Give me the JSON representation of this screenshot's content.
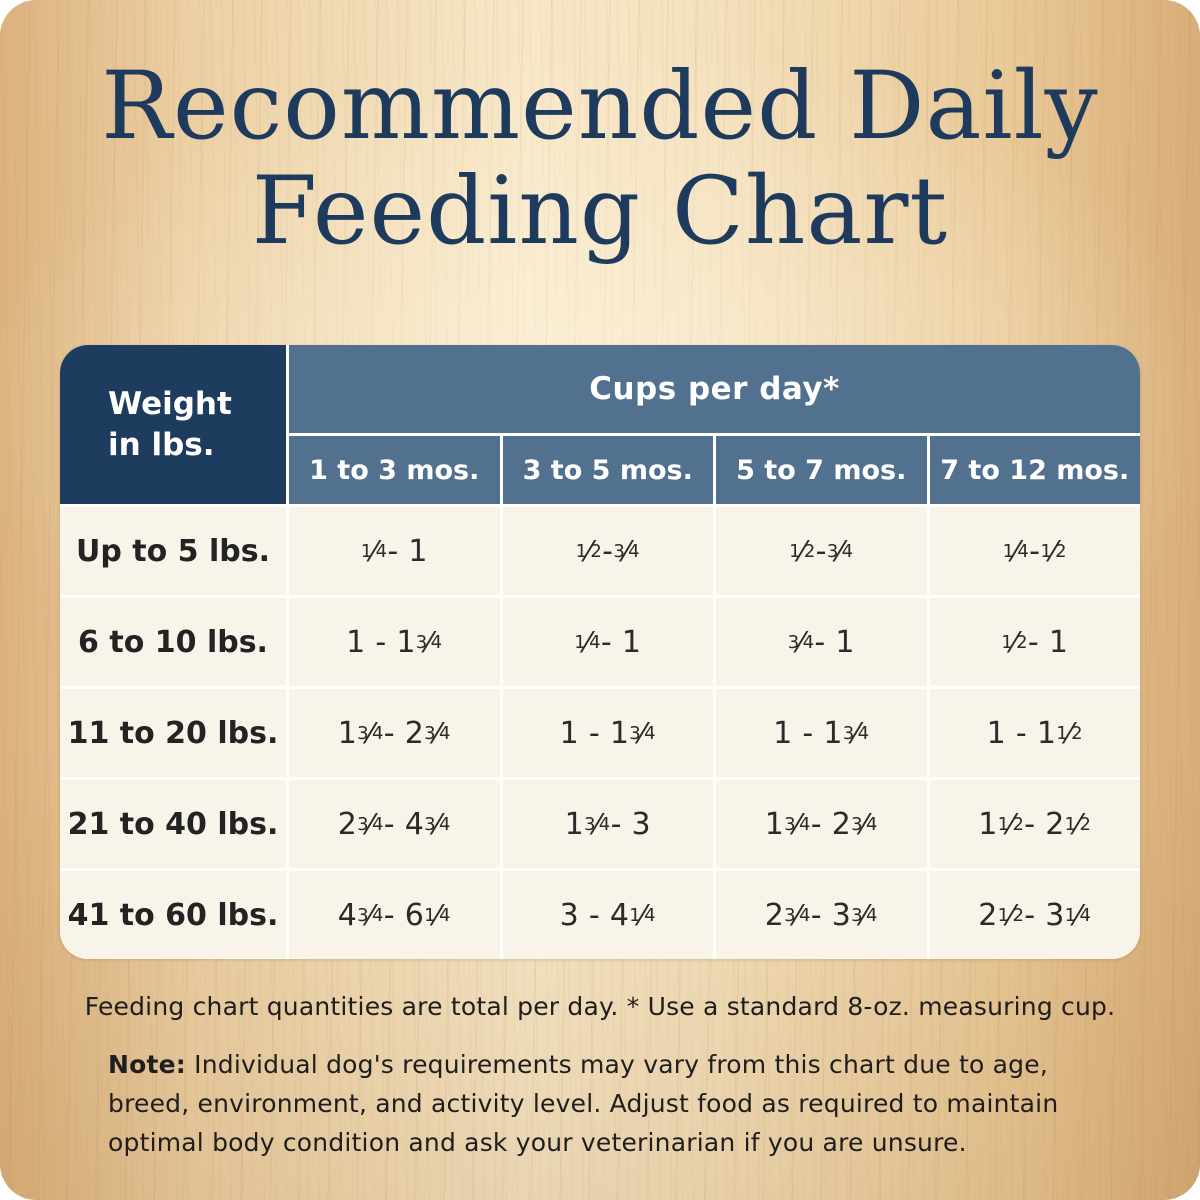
{
  "page": {
    "title_line1": "Recommended Daily",
    "title_line2": "Feeding Chart"
  },
  "colors": {
    "title_navy": "#1e3a5c",
    "header_dark_navy": "#1e3c5e",
    "header_blue": "#52718f",
    "cell_cream": "#f9f4ea",
    "background_wood": "#f0d8ae"
  },
  "table": {
    "weight_header": "Weight\nin lbs.",
    "cups_header": "Cups per day*",
    "age_columns": [
      "1 to 3 mos.",
      "3 to 5 mos.",
      "5 to 7 mos.",
      "7 to 12 mos."
    ],
    "rows": [
      {
        "weight": "Up to 5 lbs.",
        "values": [
          "1/4 - 1",
          "1/2 - 3/4",
          "1/2 - 3/4",
          "1/4 - 1/2"
        ]
      },
      {
        "weight": "6 to 10 lbs.",
        "values": [
          "1 - 1 3/4",
          "1/4 - 1",
          "3/4 - 1",
          "1/2 - 1"
        ]
      },
      {
        "weight": "11 to 20 lbs.",
        "values": [
          "1 3/4 - 2 3/4",
          "1 - 1 3/4",
          "1 - 1 3/4",
          "1 - 1 1/2"
        ]
      },
      {
        "weight": "21 to 40 lbs.",
        "values": [
          "2 3/4 - 4 3/4",
          "1 3/4 - 3",
          "1 3/4 - 2 3/4",
          "1 1/2 - 2 1/2"
        ]
      },
      {
        "weight": "41 to 60 lbs.",
        "values": [
          "4 3/4 - 6 1/4",
          "3 - 4 1/4",
          "2 3/4 - 3 3/4",
          "2 1/2 - 3 1/4"
        ]
      }
    ]
  },
  "footnote": "Feeding chart quantities are total per day. * Use a standard 8-oz. measuring cup.",
  "note": {
    "label": "Note:",
    "text": "Individual dog's requirements may vary from this chart due to age, breed, environment, and activity level. Adjust food as required to maintain optimal body condition and ask your veterinarian if you are unsure."
  }
}
